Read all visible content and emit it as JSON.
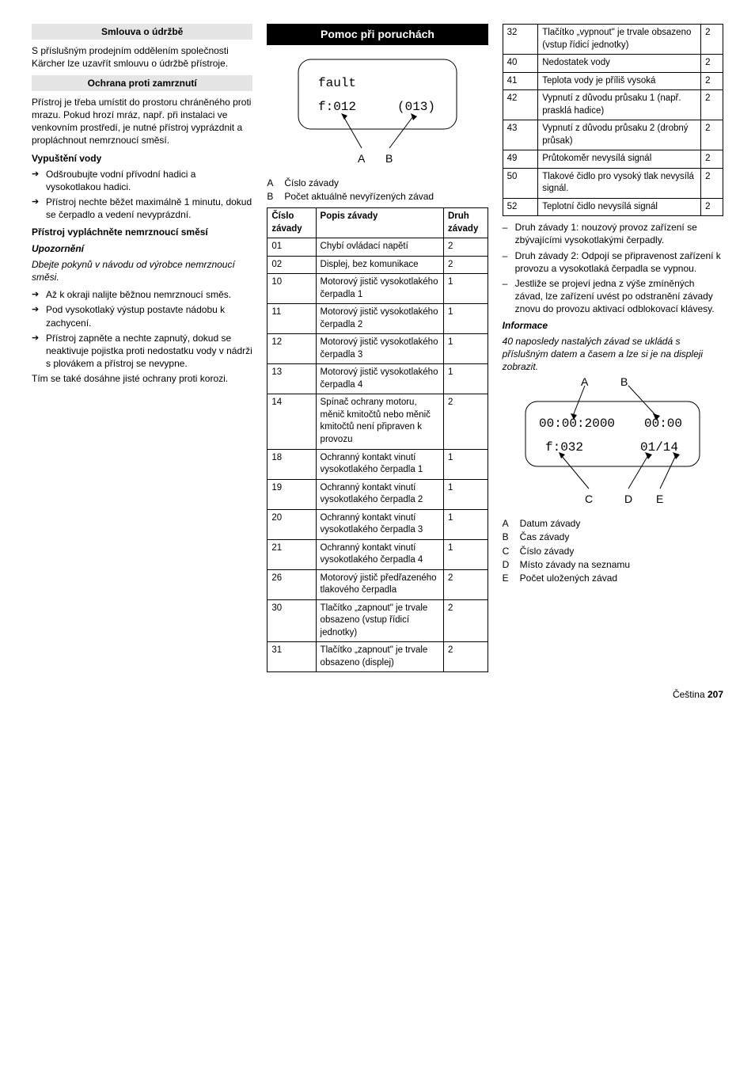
{
  "col1": {
    "h1": "Smlouva o údržbě",
    "p1": "S příslušným prodejním oddělením společnosti Kärcher lze uzavřít smlouvu o údržbě přístroje.",
    "h2": "Ochrana proti zamrznutí",
    "p2": "Přístroj je třeba umístit do prostoru chráněného proti mrazu. Pokud hrozí mráz, např. při instalaci ve venkovním prostředí, je nutné přístroj vyprázdnit a propláchnout nemrznoucí směsí.",
    "s1": "Vypuštění vody",
    "b1a": "Odšroubujte vodní přívodní hadici a vysokotlakou hadici.",
    "b1b": "Přístroj nechte běžet maximálně 1 minutu, dokud se čerpadlo a vedení nevyprázdní.",
    "s2": "Přístroj vypláchněte nemrznoucí směsí",
    "s2n": "Upozornění",
    "p3": "Dbejte pokynů v návodu od výrobce nemrznoucí směsi.",
    "b2a": "Až k okraji nalijte běžnou nemrznoucí směs.",
    "b2b": "Pod vysokotlaký výstup postavte nádobu k zachycení.",
    "b2c": "Přístroj zapněte a nechte zapnutý, dokud se neaktivuje pojistka proti nedostatku vody v nádrži s plovákem a přístroj se nevypne.",
    "p4": "Tím se také dosáhne jisté ochrany proti korozi."
  },
  "col2": {
    "h1": "Pomoc při poruchách",
    "disp1": {
      "l1": "fault",
      "l2a": "f:012",
      "l2b": "(013)",
      "labA": "A",
      "labB": "B"
    },
    "legA": "Číslo závady",
    "legB": "Počet aktuálně nevyřízených závad",
    "th1": "Číslo závady",
    "th2": "Popis závady",
    "th3": "Druh závady",
    "rows": [
      {
        "c": "01",
        "d": "Chybí ovládací napětí",
        "t": "2"
      },
      {
        "c": "02",
        "d": "Displej, bez komunikace",
        "t": "2"
      },
      {
        "c": "10",
        "d": "Motorový jistič vysokotlakého čerpadla 1",
        "t": "1"
      },
      {
        "c": "11",
        "d": "Motorový jistič vysokotlakého čerpadla 2",
        "t": "1"
      },
      {
        "c": "12",
        "d": "Motorový jistič vysokotlakého čerpadla 3",
        "t": "1"
      },
      {
        "c": "13",
        "d": "Motorový jistič vysokotlakého čerpadla 4",
        "t": "1"
      },
      {
        "c": "14",
        "d": "Spínač ochrany motoru, měnič kmitočtů nebo měnič kmitočtů není připraven k provozu",
        "t": "2"
      },
      {
        "c": "18",
        "d": "Ochranný kontakt vinutí vysokotlakého čerpadla 1",
        "t": "1"
      },
      {
        "c": "19",
        "d": "Ochranný kontakt vinutí vysokotlakého čerpadla 2",
        "t": "1"
      },
      {
        "c": "20",
        "d": "Ochranný kontakt vinutí vysokotlakého čerpadla 3",
        "t": "1"
      },
      {
        "c": "21",
        "d": "Ochranný kontakt vinutí vysokotlakého čerpadla 4",
        "t": "1"
      },
      {
        "c": "26",
        "d": "Motorový jistič předřazeného tlakového čerpadla",
        "t": "2"
      },
      {
        "c": "30",
        "d": "Tlačítko „zapnout\" je trvale obsazeno (vstup řídicí jednotky)",
        "t": "2"
      },
      {
        "c": "31",
        "d": "Tlačítko „zapnout\" je trvale obsazeno (displej)",
        "t": "2"
      }
    ]
  },
  "col3": {
    "rows": [
      {
        "c": "32",
        "d": "Tlačítko „vypnout\" je trvale obsazeno (vstup řídicí jednotky)",
        "t": "2"
      },
      {
        "c": "40",
        "d": "Nedostatek vody",
        "t": "2"
      },
      {
        "c": "41",
        "d": "Teplota vody je příliš vysoká",
        "t": "2"
      },
      {
        "c": "42",
        "d": "Vypnutí z důvodu průsaku 1 (např. prasklá hadice)",
        "t": "2"
      },
      {
        "c": "43",
        "d": "Vypnutí z důvodu průsaku 2 (drobný průsak)",
        "t": "2"
      },
      {
        "c": "49",
        "d": "Průtokoměr nevysílá signál",
        "t": "2"
      },
      {
        "c": "50",
        "d": "Tlakové čidlo pro vysoký tlak nevysílá signál.",
        "t": "2"
      },
      {
        "c": "52",
        "d": "Teplotní čidlo nevysílá signál",
        "t": "2"
      }
    ],
    "d1": "Druh závady 1: nouzový provoz zařízení se zbývajícími vysokotlakými čerpadly.",
    "d2": "Druh závady 2: Odpojí se připravenost zařízení k provozu a vysokotlaká čerpadla se vypnou.",
    "d3": "Jestliže se projeví jedna z výše zmíněných závad, lze zařízení uvést po odstranění závady znovu do provozu aktivací odblokovací klávesy.",
    "info_h": "Informace",
    "info_p": "40 naposledy nastalých závad se ukládá s příslušným datem a časem a lze si je na displeji zobrazit.",
    "disp2": {
      "l1a": "00:00:2000",
      "l1b": "00:00",
      "l2a": "f:032",
      "l2b": "01/14",
      "labA": "A",
      "labB": "B",
      "labC": "C",
      "labD": "D",
      "labE": "E"
    },
    "legA": "Datum závady",
    "legB": "Čas závady",
    "legC": "Číslo závady",
    "legD": "Místo závady na seznamu",
    "legE": "Počet uložených závad"
  },
  "footer": {
    "lang": "Čeština",
    "page": "207"
  }
}
